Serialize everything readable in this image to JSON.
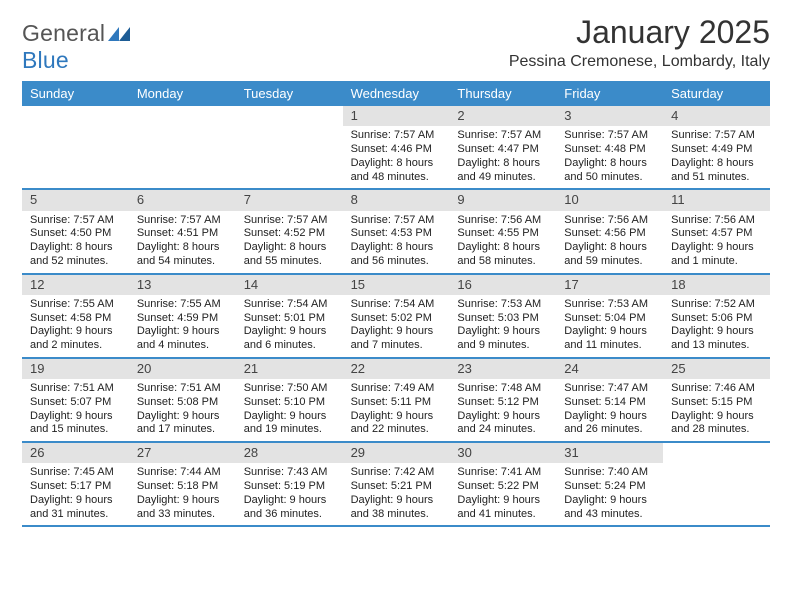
{
  "logo": {
    "prefix": "General",
    "suffix": "Blue",
    "mark_color": "#2f78bd"
  },
  "title": "January 2025",
  "location": "Pessina Cremonese, Lombardy, Italy",
  "colors": {
    "header_bg": "#3b8bc9",
    "header_text": "#ffffff",
    "daynum_bg": "#e3e3e3",
    "week_border": "#3b8bc9",
    "body_text": "#222222",
    "background": "#ffffff"
  },
  "typography": {
    "title_fontsize": 32,
    "location_fontsize": 16,
    "dayname_fontsize": 13,
    "daynum_fontsize": 13,
    "cell_fontsize": 11,
    "logo_fontsize": 23
  },
  "daynames": [
    "Sunday",
    "Monday",
    "Tuesday",
    "Wednesday",
    "Thursday",
    "Friday",
    "Saturday"
  ],
  "weeks": [
    [
      {
        "empty": true
      },
      {
        "empty": true
      },
      {
        "empty": true
      },
      {
        "day": "1",
        "sunrise": "Sunrise: 7:57 AM",
        "sunset": "Sunset: 4:46 PM",
        "daylight1": "Daylight: 8 hours",
        "daylight2": "and 48 minutes."
      },
      {
        "day": "2",
        "sunrise": "Sunrise: 7:57 AM",
        "sunset": "Sunset: 4:47 PM",
        "daylight1": "Daylight: 8 hours",
        "daylight2": "and 49 minutes."
      },
      {
        "day": "3",
        "sunrise": "Sunrise: 7:57 AM",
        "sunset": "Sunset: 4:48 PM",
        "daylight1": "Daylight: 8 hours",
        "daylight2": "and 50 minutes."
      },
      {
        "day": "4",
        "sunrise": "Sunrise: 7:57 AM",
        "sunset": "Sunset: 4:49 PM",
        "daylight1": "Daylight: 8 hours",
        "daylight2": "and 51 minutes."
      }
    ],
    [
      {
        "day": "5",
        "sunrise": "Sunrise: 7:57 AM",
        "sunset": "Sunset: 4:50 PM",
        "daylight1": "Daylight: 8 hours",
        "daylight2": "and 52 minutes."
      },
      {
        "day": "6",
        "sunrise": "Sunrise: 7:57 AM",
        "sunset": "Sunset: 4:51 PM",
        "daylight1": "Daylight: 8 hours",
        "daylight2": "and 54 minutes."
      },
      {
        "day": "7",
        "sunrise": "Sunrise: 7:57 AM",
        "sunset": "Sunset: 4:52 PM",
        "daylight1": "Daylight: 8 hours",
        "daylight2": "and 55 minutes."
      },
      {
        "day": "8",
        "sunrise": "Sunrise: 7:57 AM",
        "sunset": "Sunset: 4:53 PM",
        "daylight1": "Daylight: 8 hours",
        "daylight2": "and 56 minutes."
      },
      {
        "day": "9",
        "sunrise": "Sunrise: 7:56 AM",
        "sunset": "Sunset: 4:55 PM",
        "daylight1": "Daylight: 8 hours",
        "daylight2": "and 58 minutes."
      },
      {
        "day": "10",
        "sunrise": "Sunrise: 7:56 AM",
        "sunset": "Sunset: 4:56 PM",
        "daylight1": "Daylight: 8 hours",
        "daylight2": "and 59 minutes."
      },
      {
        "day": "11",
        "sunrise": "Sunrise: 7:56 AM",
        "sunset": "Sunset: 4:57 PM",
        "daylight1": "Daylight: 9 hours",
        "daylight2": "and 1 minute."
      }
    ],
    [
      {
        "day": "12",
        "sunrise": "Sunrise: 7:55 AM",
        "sunset": "Sunset: 4:58 PM",
        "daylight1": "Daylight: 9 hours",
        "daylight2": "and 2 minutes."
      },
      {
        "day": "13",
        "sunrise": "Sunrise: 7:55 AM",
        "sunset": "Sunset: 4:59 PM",
        "daylight1": "Daylight: 9 hours",
        "daylight2": "and 4 minutes."
      },
      {
        "day": "14",
        "sunrise": "Sunrise: 7:54 AM",
        "sunset": "Sunset: 5:01 PM",
        "daylight1": "Daylight: 9 hours",
        "daylight2": "and 6 minutes."
      },
      {
        "day": "15",
        "sunrise": "Sunrise: 7:54 AM",
        "sunset": "Sunset: 5:02 PM",
        "daylight1": "Daylight: 9 hours",
        "daylight2": "and 7 minutes."
      },
      {
        "day": "16",
        "sunrise": "Sunrise: 7:53 AM",
        "sunset": "Sunset: 5:03 PM",
        "daylight1": "Daylight: 9 hours",
        "daylight2": "and 9 minutes."
      },
      {
        "day": "17",
        "sunrise": "Sunrise: 7:53 AM",
        "sunset": "Sunset: 5:04 PM",
        "daylight1": "Daylight: 9 hours",
        "daylight2": "and 11 minutes."
      },
      {
        "day": "18",
        "sunrise": "Sunrise: 7:52 AM",
        "sunset": "Sunset: 5:06 PM",
        "daylight1": "Daylight: 9 hours",
        "daylight2": "and 13 minutes."
      }
    ],
    [
      {
        "day": "19",
        "sunrise": "Sunrise: 7:51 AM",
        "sunset": "Sunset: 5:07 PM",
        "daylight1": "Daylight: 9 hours",
        "daylight2": "and 15 minutes."
      },
      {
        "day": "20",
        "sunrise": "Sunrise: 7:51 AM",
        "sunset": "Sunset: 5:08 PM",
        "daylight1": "Daylight: 9 hours",
        "daylight2": "and 17 minutes."
      },
      {
        "day": "21",
        "sunrise": "Sunrise: 7:50 AM",
        "sunset": "Sunset: 5:10 PM",
        "daylight1": "Daylight: 9 hours",
        "daylight2": "and 19 minutes."
      },
      {
        "day": "22",
        "sunrise": "Sunrise: 7:49 AM",
        "sunset": "Sunset: 5:11 PM",
        "daylight1": "Daylight: 9 hours",
        "daylight2": "and 22 minutes."
      },
      {
        "day": "23",
        "sunrise": "Sunrise: 7:48 AM",
        "sunset": "Sunset: 5:12 PM",
        "daylight1": "Daylight: 9 hours",
        "daylight2": "and 24 minutes."
      },
      {
        "day": "24",
        "sunrise": "Sunrise: 7:47 AM",
        "sunset": "Sunset: 5:14 PM",
        "daylight1": "Daylight: 9 hours",
        "daylight2": "and 26 minutes."
      },
      {
        "day": "25",
        "sunrise": "Sunrise: 7:46 AM",
        "sunset": "Sunset: 5:15 PM",
        "daylight1": "Daylight: 9 hours",
        "daylight2": "and 28 minutes."
      }
    ],
    [
      {
        "day": "26",
        "sunrise": "Sunrise: 7:45 AM",
        "sunset": "Sunset: 5:17 PM",
        "daylight1": "Daylight: 9 hours",
        "daylight2": "and 31 minutes."
      },
      {
        "day": "27",
        "sunrise": "Sunrise: 7:44 AM",
        "sunset": "Sunset: 5:18 PM",
        "daylight1": "Daylight: 9 hours",
        "daylight2": "and 33 minutes."
      },
      {
        "day": "28",
        "sunrise": "Sunrise: 7:43 AM",
        "sunset": "Sunset: 5:19 PM",
        "daylight1": "Daylight: 9 hours",
        "daylight2": "and 36 minutes."
      },
      {
        "day": "29",
        "sunrise": "Sunrise: 7:42 AM",
        "sunset": "Sunset: 5:21 PM",
        "daylight1": "Daylight: 9 hours",
        "daylight2": "and 38 minutes."
      },
      {
        "day": "30",
        "sunrise": "Sunrise: 7:41 AM",
        "sunset": "Sunset: 5:22 PM",
        "daylight1": "Daylight: 9 hours",
        "daylight2": "and 41 minutes."
      },
      {
        "day": "31",
        "sunrise": "Sunrise: 7:40 AM",
        "sunset": "Sunset: 5:24 PM",
        "daylight1": "Daylight: 9 hours",
        "daylight2": "and 43 minutes."
      },
      {
        "empty": true
      }
    ]
  ]
}
